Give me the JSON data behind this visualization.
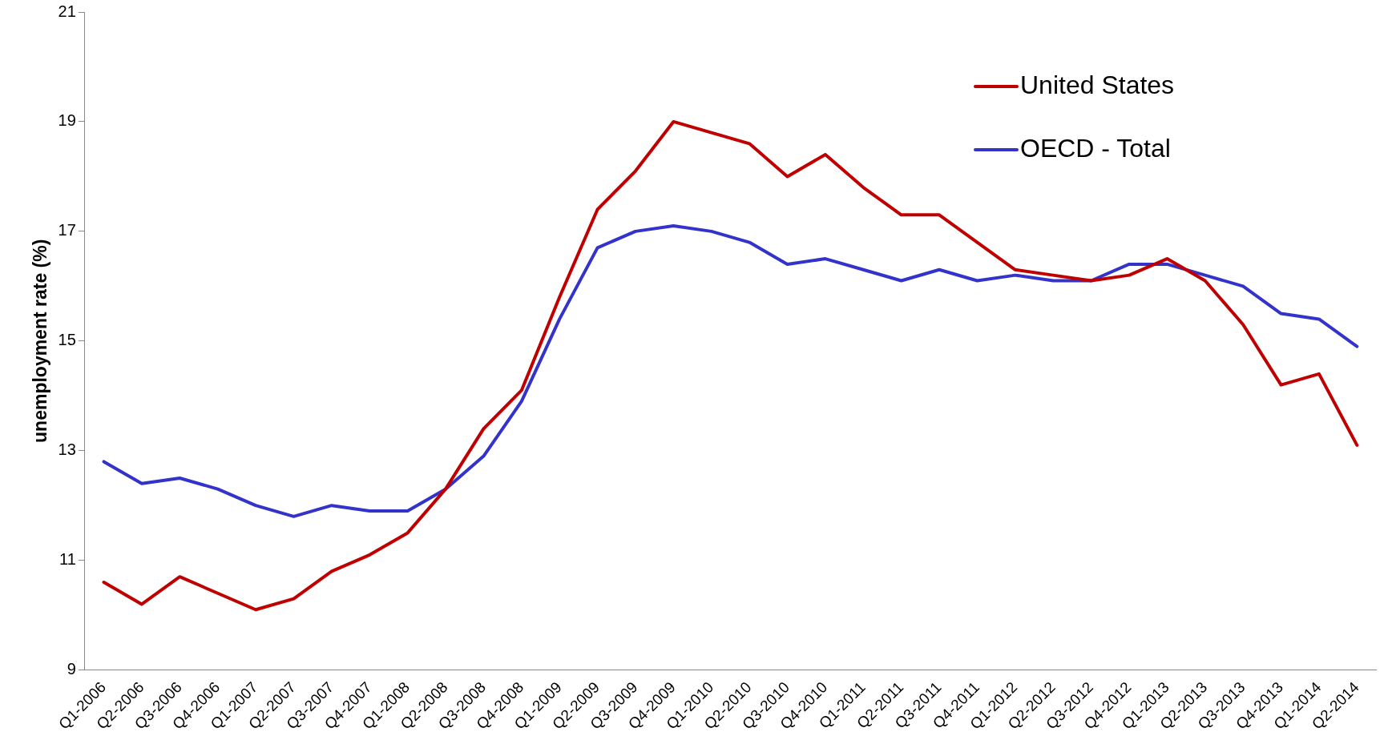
{
  "chart_data": {
    "type": "line",
    "ylabel": "unemployment rate (%)",
    "categories": [
      "Q1-2006",
      "Q2-2006",
      "Q3-2006",
      "Q4-2006",
      "Q1-2007",
      "Q2-2007",
      "Q3-2007",
      "Q4-2007",
      "Q1-2008",
      "Q2-2008",
      "Q3-2008",
      "Q4-2008",
      "Q1-2009",
      "Q2-2009",
      "Q3-2009",
      "Q4-2009",
      "Q1-2010",
      "Q2-2010",
      "Q3-2010",
      "Q4-2010",
      "Q1-2011",
      "Q2-2011",
      "Q3-2011",
      "Q4-2011",
      "Q1-2012",
      "Q2-2012",
      "Q3-2012",
      "Q4-2012",
      "Q1-2013",
      "Q2-2013",
      "Q3-2013",
      "Q4-2013",
      "Q1-2014",
      "Q2-2014"
    ],
    "series": [
      {
        "name": "United States",
        "color": "#c00000",
        "values": [
          10.6,
          10.2,
          10.7,
          10.4,
          10.1,
          10.3,
          10.8,
          11.1,
          11.5,
          12.3,
          13.4,
          14.1,
          15.8,
          17.4,
          18.1,
          19.0,
          18.8,
          18.6,
          18.0,
          18.4,
          17.8,
          17.3,
          17.3,
          16.8,
          16.3,
          16.2,
          16.1,
          16.2,
          16.5,
          16.1,
          15.3,
          14.2,
          14.4,
          13.1
        ]
      },
      {
        "name": "OECD - Total",
        "color": "#3333cc",
        "values": [
          12.8,
          12.4,
          12.5,
          12.3,
          12.0,
          11.8,
          12.0,
          11.9,
          11.9,
          12.3,
          12.9,
          13.9,
          15.4,
          16.7,
          17.0,
          17.1,
          17.0,
          16.8,
          16.4,
          16.5,
          16.3,
          16.1,
          16.3,
          16.1,
          16.2,
          16.1,
          16.1,
          16.4,
          16.4,
          16.2,
          16.0,
          15.5,
          15.4,
          14.9
        ]
      }
    ],
    "ylim": [
      9,
      21
    ],
    "yticks": [
      9,
      11,
      13,
      15,
      17,
      19,
      21
    ],
    "grid": false,
    "legend": "top right",
    "marker": "none",
    "line_style": "solid"
  }
}
